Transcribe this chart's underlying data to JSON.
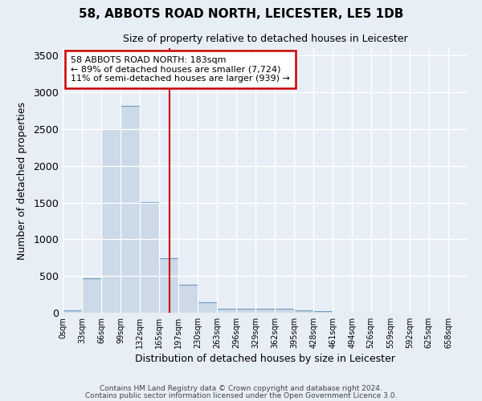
{
  "title_line1": "58, ABBOTS ROAD NORTH, LEICESTER, LE5 1DB",
  "title_line2": "Size of property relative to detached houses in Leicester",
  "xlabel": "Distribution of detached houses by size in Leicester",
  "ylabel": "Number of detached properties",
  "bar_left_edges": [
    0,
    33,
    66,
    99,
    132,
    165,
    197,
    230,
    263,
    296,
    329,
    362,
    395,
    428,
    461,
    494,
    526,
    559,
    592,
    625
  ],
  "bar_heights": [
    30,
    470,
    2500,
    2820,
    1510,
    740,
    385,
    145,
    55,
    60,
    50,
    50,
    35,
    20,
    0,
    0,
    0,
    0,
    0,
    0
  ],
  "bin_width": 33,
  "tick_labels": [
    "0sqm",
    "33sqm",
    "66sqm",
    "99sqm",
    "132sqm",
    "165sqm",
    "197sqm",
    "230sqm",
    "263sqm",
    "296sqm",
    "329sqm",
    "362sqm",
    "395sqm",
    "428sqm",
    "461sqm",
    "494sqm",
    "526sqm",
    "559sqm",
    "592sqm",
    "625sqm",
    "658sqm"
  ],
  "bar_color": "#ccd9e8",
  "bar_edge_color": "#6699bb",
  "property_size": 183,
  "property_line_color": "#cc0000",
  "annotation_title": "58 ABBOTS ROAD NORTH: 183sqm",
  "annotation_line1": "← 89% of detached houses are smaller (7,724)",
  "annotation_line2": "11% of semi-detached houses are larger (939) →",
  "annotation_box_color": "#cc0000",
  "ylim": [
    0,
    3600
  ],
  "yticks": [
    0,
    500,
    1000,
    1500,
    2000,
    2500,
    3000,
    3500
  ],
  "footer1": "Contains HM Land Registry data © Crown copyright and database right 2024.",
  "footer2": "Contains public sector information licensed under the Open Government Licence 3.0.",
  "bg_color": "#e8eef5",
  "plot_bg_color": "#e8eef5",
  "grid_color": "#ffffff"
}
